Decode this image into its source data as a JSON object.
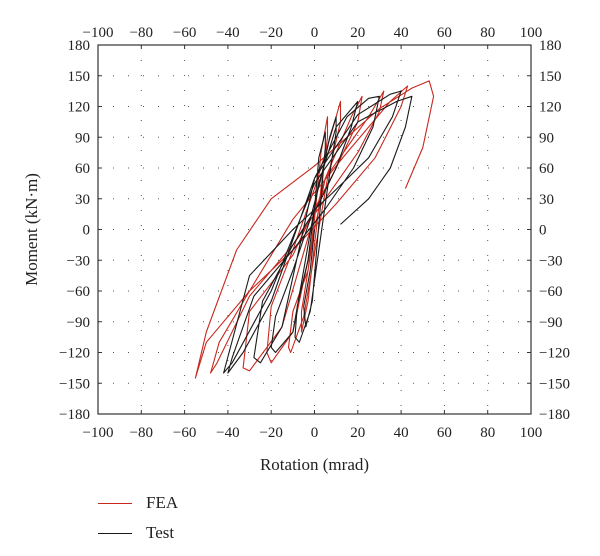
{
  "chart_data": {
    "type": "line",
    "xlabel": "Rotation (mrad)",
    "ylabel": "Moment (kN·m)",
    "xlim": [
      -100,
      100
    ],
    "ylim": [
      -180,
      180
    ],
    "x_ticks": [
      -100,
      -80,
      -60,
      -40,
      -20,
      0,
      20,
      40,
      60,
      80,
      100
    ],
    "y_ticks": [
      -180,
      -150,
      -120,
      -90,
      -60,
      -30,
      0,
      30,
      60,
      90,
      120,
      150,
      180
    ],
    "grid": "dotted",
    "legend_position": "bottom-left",
    "series": [
      {
        "name": "FEA",
        "color": "#c8281e",
        "x": [
          0,
          -3,
          -6,
          -6,
          -3,
          3,
          6,
          6,
          3,
          0,
          -3,
          -10,
          -12,
          -11,
          -5,
          6,
          12,
          12,
          8,
          0,
          -10,
          -20,
          -22,
          -20,
          -10,
          5,
          17,
          22,
          20,
          10,
          0,
          -10,
          -30,
          -33,
          -30,
          -15,
          5,
          25,
          32,
          30,
          20,
          5,
          -10,
          -30,
          -45,
          -48,
          -44,
          -30,
          -10,
          15,
          35,
          43,
          40,
          28,
          10,
          -10,
          -30,
          -50,
          -55,
          -50,
          -36,
          -20,
          0,
          15,
          30,
          45,
          53,
          55,
          50,
          42
        ],
        "y": [
          0,
          -40,
          -80,
          -100,
          -70,
          40,
          90,
          110,
          75,
          10,
          -40,
          -80,
          -115,
          -120,
          -85,
          50,
          105,
          125,
          95,
          40,
          -20,
          -75,
          -120,
          -130,
          -100,
          50,
          110,
          130,
          105,
          60,
          20,
          -25,
          -80,
          -135,
          -138,
          -95,
          50,
          110,
          135,
          115,
          75,
          30,
          -15,
          -65,
          -130,
          -140,
          -110,
          -60,
          10,
          75,
          125,
          140,
          120,
          70,
          25,
          -20,
          -60,
          -110,
          -145,
          -100,
          -20,
          30,
          62,
          90,
          118,
          138,
          145,
          130,
          80,
          40
        ]
      },
      {
        "name": "Test",
        "color": "#1a1a1a",
        "x": [
          0,
          -2,
          -5,
          -4,
          -1,
          3,
          5,
          5,
          2,
          0,
          -3,
          -8,
          -9,
          -7,
          -2,
          6,
          10,
          10,
          7,
          3,
          -2,
          -10,
          -18,
          -20,
          -18,
          -10,
          2,
          10,
          18,
          20,
          17,
          10,
          2,
          -10,
          -24,
          -28,
          -25,
          -15,
          0,
          15,
          25,
          30,
          27,
          18,
          5,
          -10,
          -28,
          -38,
          -40,
          -33,
          -20,
          0,
          20,
          35,
          40,
          36,
          25,
          8,
          -10,
          -30,
          -42,
          -38,
          -20,
          0,
          20,
          38,
          45,
          42,
          35,
          25,
          12
        ],
        "y": [
          0,
          -40,
          -75,
          -95,
          -70,
          30,
          80,
          95,
          70,
          20,
          -30,
          -75,
          -105,
          -110,
          -80,
          40,
          95,
          110,
          90,
          50,
          10,
          -40,
          -85,
          -115,
          -120,
          -100,
          45,
          100,
          120,
          125,
          100,
          60,
          25,
          -15,
          -70,
          -125,
          -130,
          -95,
          50,
          110,
          128,
          130,
          100,
          60,
          20,
          -20,
          -65,
          -125,
          -140,
          -120,
          -70,
          50,
          112,
          132,
          135,
          110,
          70,
          35,
          0,
          -45,
          -140,
          -130,
          -60,
          45,
          105,
          125,
          130,
          100,
          60,
          30,
          5
        ]
      }
    ]
  }
}
